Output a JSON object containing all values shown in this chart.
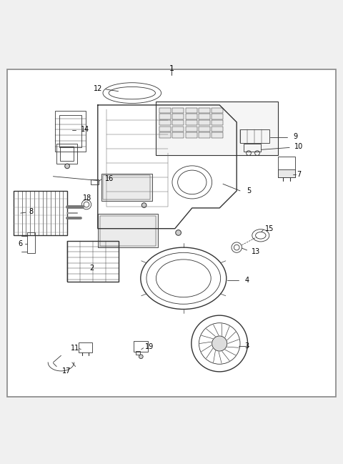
{
  "title": "1",
  "background_color": "#f0f0f0",
  "border_color": "#888888",
  "diagram_bg": "#ffffff",
  "label_color": "#000000",
  "line_color": "#333333",
  "figsize": [
    4.8,
    6.49
  ],
  "dpi": 100
}
